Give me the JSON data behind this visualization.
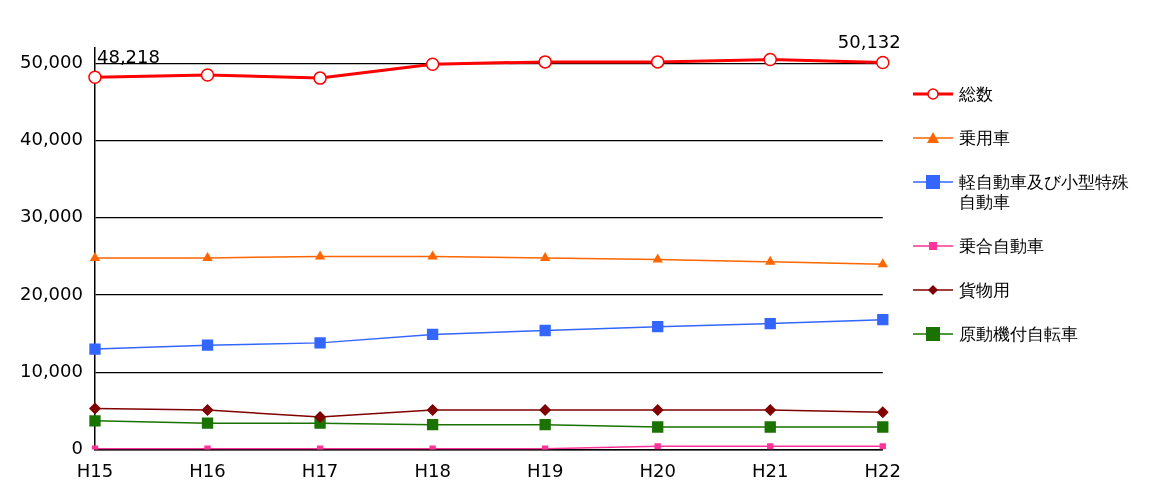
{
  "chart_data": {
    "type": "line",
    "categories": [
      "H15",
      "H16",
      "H17",
      "H18",
      "H19",
      "H20",
      "H21",
      "H22"
    ],
    "series": [
      {
        "name": "総数",
        "color": "#ff0000",
        "marker": "circle",
        "values": [
          48218,
          48500,
          48100,
          49900,
          50200,
          50200,
          50500,
          50132
        ],
        "value_labels": [
          "48,218",
          null,
          null,
          null,
          null,
          null,
          null,
          "50,132"
        ]
      },
      {
        "name": "乗用車",
        "color": "#ff6600",
        "marker": "triangle",
        "values": [
          24800,
          24800,
          25000,
          25000,
          24800,
          24600,
          24300,
          24000
        ]
      },
      {
        "name": "軽自動車及び小型特殊自動車",
        "color": "#3366ff",
        "marker": "square",
        "values": [
          13000,
          13500,
          13800,
          14900,
          15400,
          15900,
          16300,
          16800
        ]
      },
      {
        "name": "乗合自動車",
        "color": "#ff3399",
        "marker": "square",
        "values": [
          100,
          100,
          100,
          100,
          100,
          400,
          400,
          400
        ]
      },
      {
        "name": "貨物用",
        "color": "#800000",
        "marker": "diamond",
        "values": [
          5300,
          5100,
          4200,
          5100,
          5100,
          5100,
          5100,
          4800
        ]
      },
      {
        "name": "原動機付自転車",
        "color": "#1a7300",
        "marker": "square",
        "values": [
          3700,
          3400,
          3400,
          3200,
          3200,
          2900,
          2900,
          2900
        ]
      }
    ],
    "ylim": [
      0,
      52000
    ],
    "yticks": [
      0,
      {
        "value": 10000,
        "label": "10,000"
      },
      {
        "value": 20000,
        "label": "20,000"
      },
      {
        "value": 30000,
        "label": "30,000"
      },
      {
        "value": 40000,
        "label": "40,000"
      },
      {
        "value": 50000,
        "label": "50,000"
      }
    ],
    "grid": "y",
    "legend": "right"
  }
}
